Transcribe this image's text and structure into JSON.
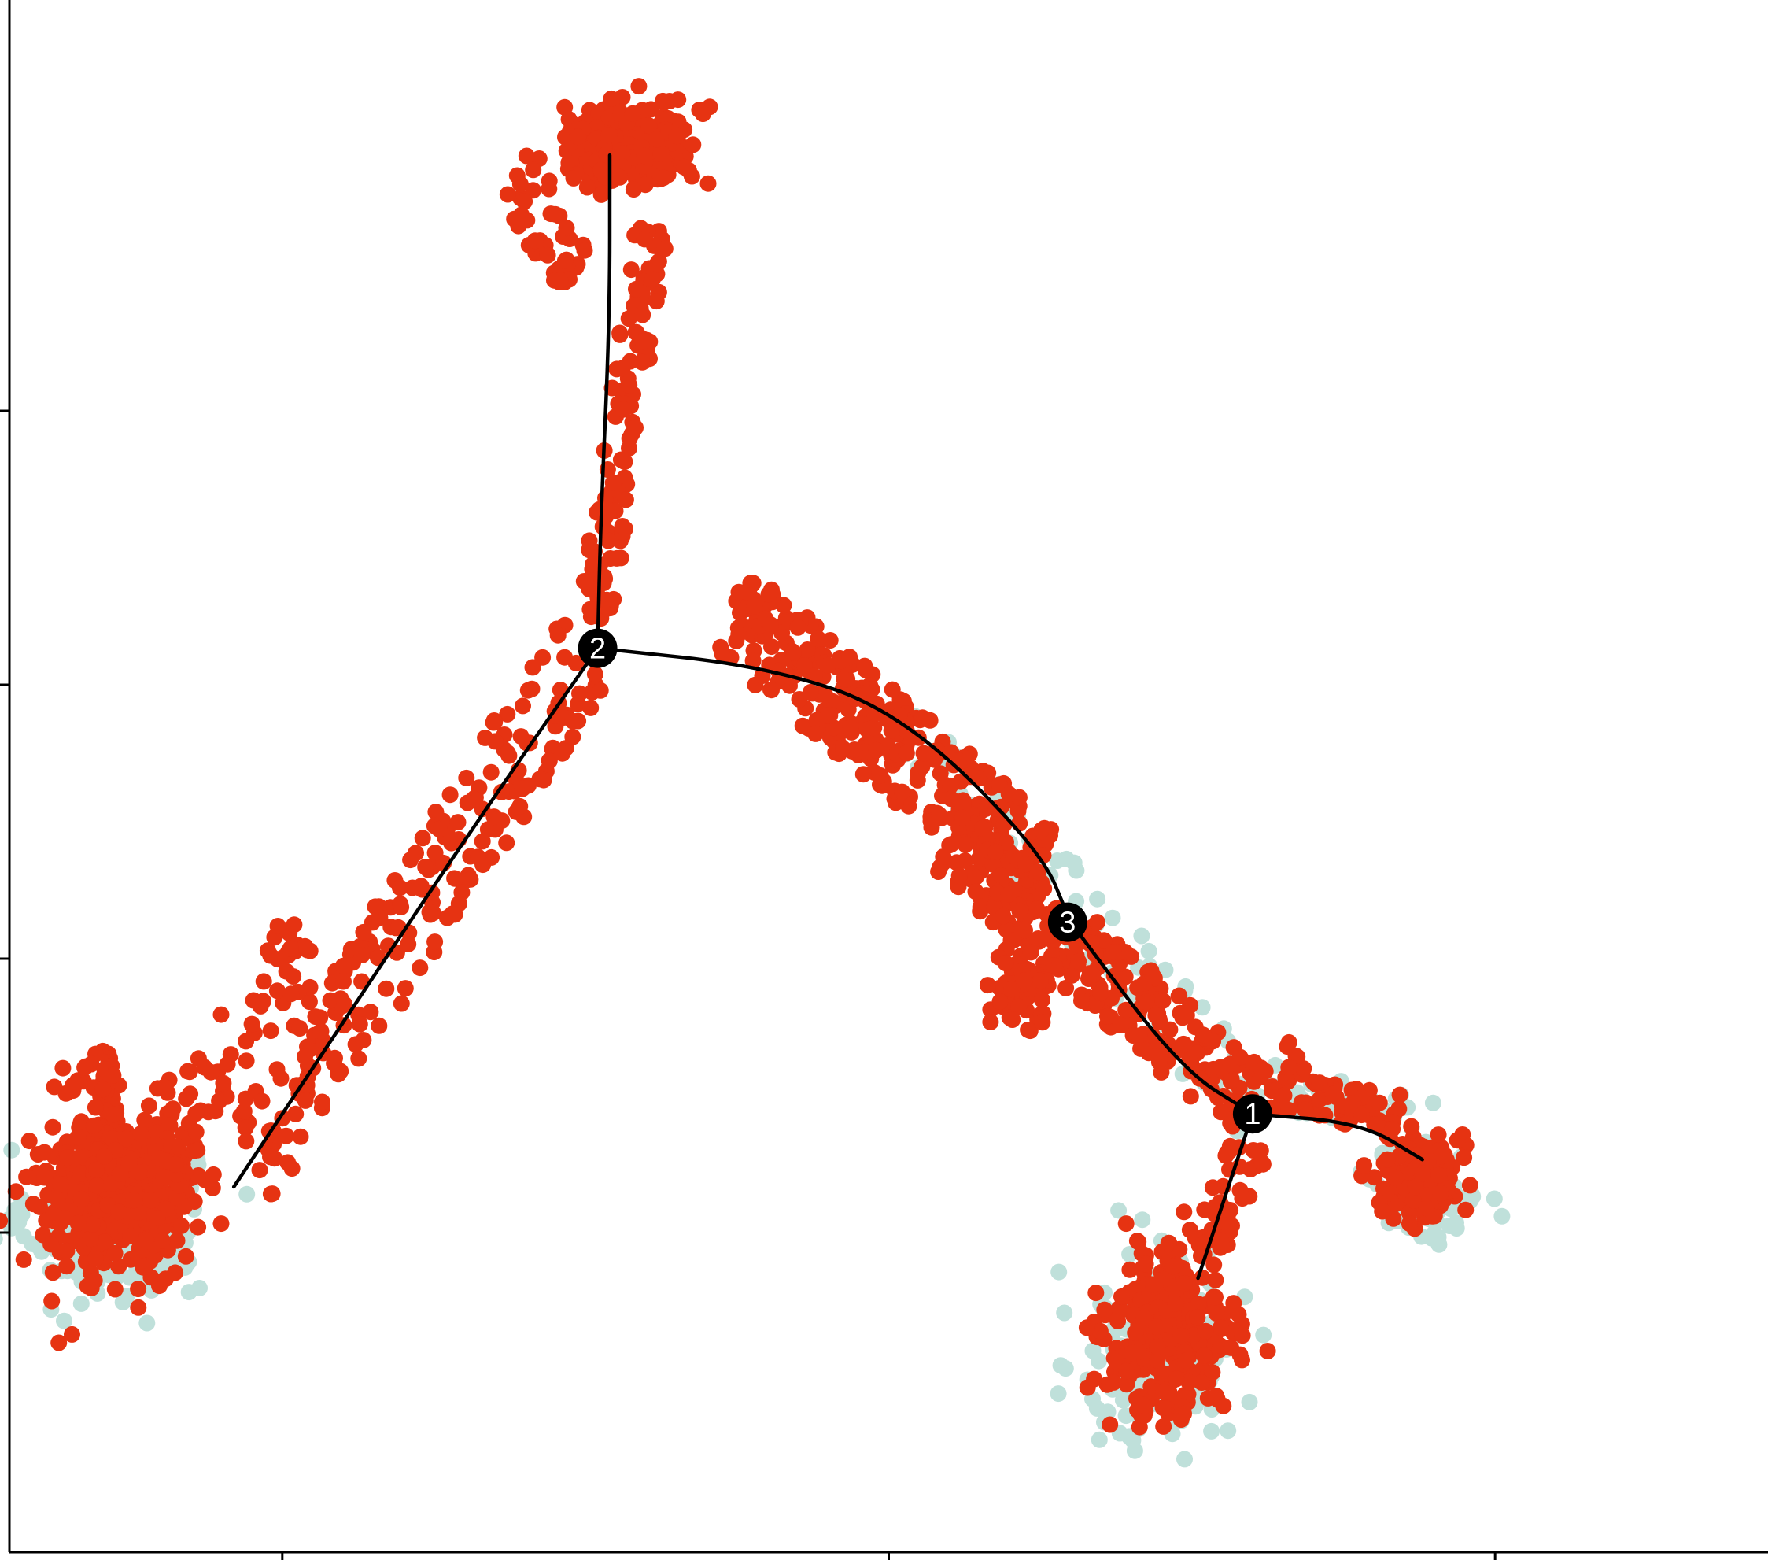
{
  "chart_data": {
    "type": "scatter",
    "title": "",
    "xlabel": "",
    "ylabel": "",
    "xlim": [
      -14.5,
      14.5
    ],
    "ylim": [
      -6.5,
      10.5
    ],
    "x_ticks": [
      -10,
      0,
      10
    ],
    "y_ticks": [
      -3,
      0,
      3,
      6
    ],
    "x_tick_labels": [],
    "y_tick_labels": [],
    "grid": false,
    "legend": "none",
    "colors": {
      "background_cells": "#bfe0da",
      "highlighted_cells": "#e63312",
      "trajectory": "#000000",
      "branch_node": "#000000"
    },
    "trajectory": [
      {
        "segment": "stem-top",
        "points": [
          [
            -4.6,
            8.8
          ],
          [
            -4.6,
            7.0
          ],
          [
            -4.75,
            4.8
          ],
          [
            -4.8,
            3.4
          ]
        ]
      },
      {
        "segment": "2-to-3",
        "points": [
          [
            -4.8,
            3.4
          ],
          [
            -2.0,
            3.2
          ],
          [
            0.2,
            2.7
          ],
          [
            2.5,
            1.2
          ],
          [
            3.0,
            0.4
          ]
        ]
      },
      {
        "segment": "3-to-1",
        "points": [
          [
            3.0,
            0.4
          ],
          [
            4.8,
            -1.2
          ],
          [
            6.0,
            -1.7
          ]
        ]
      },
      {
        "segment": "1-to-right",
        "points": [
          [
            6.0,
            -1.7
          ],
          [
            7.8,
            -1.8
          ],
          [
            8.8,
            -2.2
          ]
        ]
      },
      {
        "segment": "1-to-lower",
        "points": [
          [
            6.0,
            -1.7
          ],
          [
            5.7,
            -2.3
          ],
          [
            5.1,
            -3.5
          ]
        ]
      },
      {
        "segment": "2-to-left",
        "points": [
          [
            -4.8,
            3.4
          ],
          [
            -7.0,
            1.3
          ],
          [
            -9.2,
            -0.9
          ],
          [
            -10.8,
            -2.5
          ]
        ]
      }
    ],
    "branch_points": [
      {
        "label": "1",
        "x": 6.0,
        "y": -1.7
      },
      {
        "label": "2",
        "x": -4.8,
        "y": 3.4
      },
      {
        "label": "3",
        "x": 2.95,
        "y": 0.4
      }
    ],
    "series": [
      {
        "clusters": [
          {
            "shape": "ellipse",
            "cx": -12.8,
            "cy": -2.9,
            "rx": 1.25,
            "ry": 0.75,
            "n": 260
          },
          {
            "shape": "ellipse",
            "cx": 4.5,
            "cy": -4.3,
            "rx": 1.2,
            "ry": 1.0,
            "n": 170
          },
          {
            "shape": "ellipse",
            "cx": 8.9,
            "cy": -2.6,
            "rx": 0.75,
            "ry": 0.45,
            "n": 90
          },
          {
            "shape": "band",
            "from": [
              0.2,
              2.6
            ],
            "to": [
              6.0,
              -1.6
            ],
            "width": 0.45,
            "n": 80
          },
          {
            "shape": "band",
            "from": [
              6.3,
              -1.4
            ],
            "to": [
              9.0,
              -1.8
            ],
            "width": 0.25,
            "n": 35
          }
        ]
      },
      {
        "clusters": [
          {
            "shape": "ellipse",
            "cx": -4.3,
            "cy": 8.9,
            "rx": 0.95,
            "ry": 0.42,
            "n": 280
          },
          {
            "shape": "band",
            "from": [
              -6.2,
              8.6
            ],
            "to": [
              -5.2,
              7.5
            ],
            "width": 0.35,
            "n": 45
          },
          {
            "shape": "band",
            "from": [
              -3.9,
              8.0
            ],
            "to": [
              -4.85,
              3.7
            ],
            "width": 0.28,
            "n": 120
          },
          {
            "shape": "band",
            "from": [
              -5.0,
              3.35
            ],
            "to": [
              -10.6,
              -2.3
            ],
            "width": 0.55,
            "n": 220
          },
          {
            "shape": "band",
            "from": [
              -9.6,
              0.2
            ],
            "to": [
              -11.8,
              -1.8
            ],
            "width": 0.45,
            "n": 55
          },
          {
            "shape": "band",
            "from": [
              -2.6,
              3.8
            ],
            "to": [
              2.5,
              1.0
            ],
            "width": 0.55,
            "n": 330
          },
          {
            "shape": "band",
            "from": [
              1.0,
              1.3
            ],
            "to": [
              6.0,
              -1.6
            ],
            "width": 0.45,
            "n": 290
          },
          {
            "shape": "ellipse",
            "cx": 2.2,
            "cy": -0.3,
            "rx": 0.45,
            "ry": 0.45,
            "n": 70
          },
          {
            "shape": "ellipse",
            "cx": -12.7,
            "cy": -2.5,
            "rx": 1.1,
            "ry": 0.75,
            "n": 650
          },
          {
            "shape": "band",
            "from": [
              -13.3,
              -1.6
            ],
            "to": [
              -12.9,
              -1.0
            ],
            "width": 0.25,
            "n": 25
          },
          {
            "shape": "ellipse",
            "cx": 4.6,
            "cy": -4.1,
            "rx": 0.95,
            "ry": 0.85,
            "n": 300
          },
          {
            "shape": "band",
            "from": [
              5.2,
              -3.3
            ],
            "to": [
              6.0,
              -2.0
            ],
            "width": 0.3,
            "n": 40
          },
          {
            "shape": "ellipse",
            "cx": 8.8,
            "cy": -2.4,
            "rx": 0.55,
            "ry": 0.42,
            "n": 170
          },
          {
            "shape": "band",
            "from": [
              6.3,
              -1.5
            ],
            "to": [
              8.5,
              -1.7
            ],
            "width": 0.22,
            "n": 60
          },
          {
            "shape": "band",
            "from": [
              6.5,
              -1.0
            ],
            "to": [
              6.8,
              -1.3
            ],
            "width": 0.15,
            "n": 8
          }
        ]
      }
    ]
  }
}
